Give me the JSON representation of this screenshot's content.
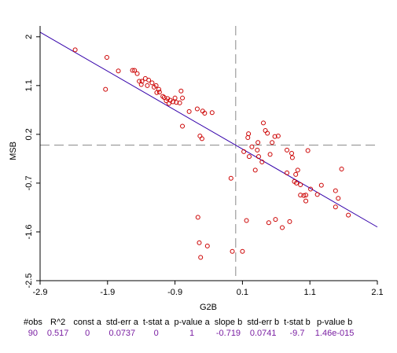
{
  "chart_data": {
    "type": "scatter",
    "xlabel": "G2B",
    "ylabel": "MSB",
    "xlim": [
      -2.9,
      2.1
    ],
    "ylim": [
      -2.5,
      2.2
    ],
    "x_ticks": [
      "-2.9",
      "-1.9",
      "-0.9",
      "0.1",
      "1.1",
      "2.1"
    ],
    "x_tick_values": [
      -2.9,
      -1.9,
      -0.9,
      0.1,
      1.1,
      2.1
    ],
    "y_ticks": [
      "2",
      "1.1",
      "0.2",
      "-0.7",
      "-1.6",
      "-2.5"
    ],
    "y_tick_values": [
      2,
      1.1,
      0.2,
      -0.7,
      -1.6,
      -2.5
    ],
    "grid": false,
    "point_color": "#cc0000",
    "line_color": "#3300aa",
    "ref_line_color": "#888888",
    "reference_lines": {
      "x": 0.0,
      "y": 0.0
    },
    "regression": {
      "intercept": 0,
      "slope": -0.719
    },
    "points": [
      [
        -2.38,
        1.76
      ],
      [
        -1.91,
        1.62
      ],
      [
        -1.93,
        1.03
      ],
      [
        -1.74,
        1.37
      ],
      [
        -1.53,
        1.38
      ],
      [
        -1.5,
        1.38
      ],
      [
        -1.46,
        1.32
      ],
      [
        -1.43,
        1.18
      ],
      [
        -1.4,
        1.12
      ],
      [
        -1.39,
        1.18
      ],
      [
        -1.34,
        1.23
      ],
      [
        -1.31,
        1.1
      ],
      [
        -1.29,
        1.2
      ],
      [
        -1.24,
        1.15
      ],
      [
        -1.21,
        1.07
      ],
      [
        -1.18,
        1.1
      ],
      [
        -1.14,
        1.03
      ],
      [
        -1.17,
        0.97
      ],
      [
        -1.13,
        0.98
      ],
      [
        -1.08,
        0.9
      ],
      [
        -1.06,
        0.88
      ],
      [
        -1.01,
        0.86
      ],
      [
        -1.03,
        0.82
      ],
      [
        -0.99,
        0.77
      ],
      [
        -0.97,
        0.83
      ],
      [
        -0.93,
        0.8
      ],
      [
        -0.9,
        0.87
      ],
      [
        -0.88,
        0.79
      ],
      [
        -0.83,
        0.78
      ],
      [
        -0.81,
        1.0
      ],
      [
        -0.79,
        0.87
      ],
      [
        -0.69,
        0.62
      ],
      [
        -0.79,
        0.35
      ],
      [
        -0.57,
        0.67
      ],
      [
        -0.49,
        0.63
      ],
      [
        -0.46,
        0.59
      ],
      [
        -0.35,
        0.6
      ],
      [
        -0.53,
        0.17
      ],
      [
        -0.5,
        0.12
      ],
      [
        -0.56,
        -1.33
      ],
      [
        -0.54,
        -1.8
      ],
      [
        -0.52,
        -2.07
      ],
      [
        -0.42,
        -1.86
      ],
      [
        -0.07,
        -0.61
      ],
      [
        -0.05,
        -1.96
      ],
      [
        0.1,
        -1.96
      ],
      [
        0.12,
        -0.12
      ],
      [
        0.16,
        -1.39
      ],
      [
        0.2,
        -0.21
      ],
      [
        0.18,
        0.14
      ],
      [
        0.19,
        0.21
      ],
      [
        0.24,
        -0.03
      ],
      [
        0.29,
        -0.46
      ],
      [
        0.32,
        -0.09
      ],
      [
        0.33,
        0.05
      ],
      [
        0.34,
        -0.21
      ],
      [
        0.39,
        -0.31
      ],
      [
        0.41,
        0.41
      ],
      [
        0.44,
        0.27
      ],
      [
        0.47,
        0.22
      ],
      [
        0.51,
        -0.17
      ],
      [
        0.49,
        -1.43
      ],
      [
        0.54,
        0.05
      ],
      [
        0.58,
        0.16
      ],
      [
        0.59,
        -1.37
      ],
      [
        0.63,
        0.17
      ],
      [
        0.69,
        -1.52
      ],
      [
        0.76,
        -0.51
      ],
      [
        0.76,
        -0.09
      ],
      [
        0.8,
        -1.41
      ],
      [
        0.83,
        -0.15
      ],
      [
        0.84,
        -0.23
      ],
      [
        0.87,
        -0.67
      ],
      [
        0.89,
        -0.54
      ],
      [
        0.9,
        -0.7
      ],
      [
        0.92,
        -0.46
      ],
      [
        0.96,
        -0.73
      ],
      [
        0.96,
        -0.92
      ],
      [
        1.01,
        -0.93
      ],
      [
        1.04,
        -0.92
      ],
      [
        1.04,
        -1.03
      ],
      [
        1.07,
        -0.1
      ],
      [
        1.11,
        -0.81
      ],
      [
        1.21,
        -0.91
      ],
      [
        1.27,
        -0.74
      ],
      [
        1.48,
        -0.84
      ],
      [
        1.52,
        -0.98
      ],
      [
        1.48,
        -1.14
      ],
      [
        1.57,
        -0.44
      ],
      [
        1.67,
        -1.29
      ]
    ]
  },
  "stats": {
    "headers": [
      "#obs",
      "R^2",
      "const a",
      "std-err a",
      "t-stat a",
      "p-value a",
      "slope b",
      "std-err b",
      "t-stat b",
      "p-value b"
    ],
    "values": [
      "90",
      "0.517",
      "0",
      "0.0737",
      "0",
      "1",
      "-0.719",
      "0.0741",
      "-9.7",
      "1.46e-015"
    ]
  }
}
